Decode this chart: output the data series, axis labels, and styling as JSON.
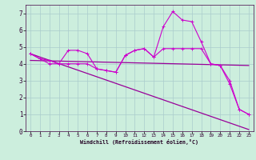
{
  "xlabel": "Windchill (Refroidissement éolien,°C)",
  "xlim": [
    -0.5,
    23.5
  ],
  "ylim": [
    0,
    7.5
  ],
  "yticks": [
    0,
    1,
    2,
    3,
    4,
    5,
    6,
    7
  ],
  "xticks": [
    0,
    1,
    2,
    3,
    4,
    5,
    6,
    7,
    8,
    9,
    10,
    11,
    12,
    13,
    14,
    15,
    16,
    17,
    18,
    19,
    20,
    21,
    22,
    23
  ],
  "background_color": "#cceedd",
  "grid_color": "#aacccc",
  "line_color": "#990099",
  "line_color2": "#cc00cc",
  "line1_x": [
    0,
    1,
    2,
    3,
    4,
    5,
    6,
    7,
    8,
    9,
    10,
    11,
    12,
    13,
    14,
    15,
    16,
    17,
    18,
    19,
    20,
    21,
    22,
    23
  ],
  "line1_y": [
    4.6,
    4.3,
    4.2,
    4.0,
    4.8,
    4.8,
    4.6,
    3.7,
    3.6,
    3.5,
    4.5,
    4.8,
    4.9,
    4.4,
    6.2,
    7.1,
    6.6,
    6.5,
    5.3,
    4.0,
    3.9,
    2.8,
    1.3,
    1.0
  ],
  "line2_x": [
    0,
    1,
    2,
    3,
    4,
    5,
    6,
    7,
    8,
    9,
    10,
    11,
    12,
    13,
    14,
    15,
    16,
    17,
    18,
    19,
    20,
    21,
    22,
    23
  ],
  "line2_y": [
    4.6,
    4.3,
    4.0,
    4.0,
    4.0,
    4.0,
    4.0,
    3.7,
    3.6,
    3.5,
    4.5,
    4.8,
    4.9,
    4.4,
    4.9,
    4.9,
    4.9,
    4.9,
    4.9,
    4.0,
    3.9,
    3.0,
    1.3,
    1.0
  ],
  "line3_x": [
    0,
    23
  ],
  "line3_y": [
    4.6,
    0.1
  ],
  "line4_x": [
    0,
    23
  ],
  "line4_y": [
    4.2,
    3.9
  ]
}
